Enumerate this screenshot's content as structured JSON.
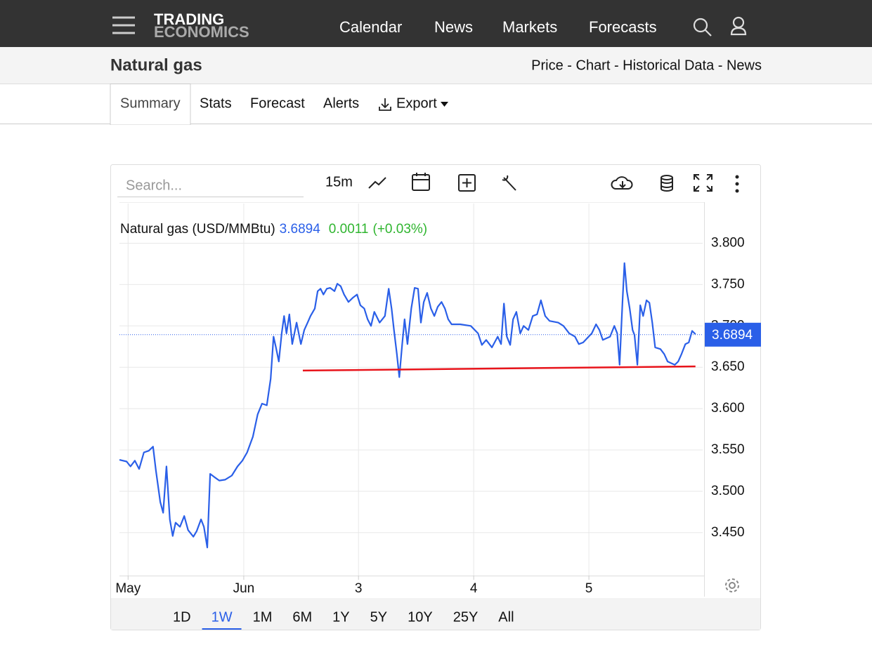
{
  "header": {
    "logo_top": "TRADING",
    "logo_bottom": "ECONOMICS",
    "nav": [
      "Calendar",
      "News",
      "Markets",
      "Forecasts"
    ]
  },
  "page": {
    "title": "Natural gas",
    "links": "Price - Chart - Historical Data - News"
  },
  "tabs": [
    "Summary",
    "Stats",
    "Forecast",
    "Alerts",
    "Export"
  ],
  "toolbar": {
    "search_placeholder": "Search...",
    "interval": "15m"
  },
  "ranges": [
    "1D",
    "1W",
    "1M",
    "6M",
    "1Y",
    "5Y",
    "10Y",
    "25Y",
    "All"
  ],
  "selected_range_index": 1,
  "chart_data": {
    "type": "line",
    "title": "Natural gas (USD/MMBtu)",
    "last_price": 3.6894,
    "change": 0.0011,
    "change_percent": {
      "value": 0.03,
      "label": "(+0.03%)"
    },
    "xlim": [
      0,
      121.5
    ],
    "ylim": [
      3.398,
      3.848
    ],
    "xticks": [
      {
        "value": 1.8,
        "label": "May"
      },
      {
        "value": 25.9,
        "label": "Jun"
      },
      {
        "value": 49.8,
        "label": "3"
      },
      {
        "value": 73.8,
        "label": "4"
      },
      {
        "value": 97.8,
        "label": "5"
      }
    ],
    "yticks": [
      {
        "value": 3.45,
        "label": "3.450"
      },
      {
        "value": 3.5,
        "label": "3.500"
      },
      {
        "value": 3.55,
        "label": "3.550"
      },
      {
        "value": 3.6,
        "label": "3.600"
      },
      {
        "value": 3.65,
        "label": "3.650"
      },
      {
        "value": 3.7,
        "label": "3.700"
      },
      {
        "value": 3.75,
        "label": "3.750"
      },
      {
        "value": 3.8,
        "label": "3.800"
      }
    ],
    "grid": true,
    "x": [
      0.0,
      1.5,
      2.3,
      3.2,
      4.1,
      5.1,
      6.1,
      7.0,
      7.6,
      8.5,
      9.1,
      9.8,
      10.5,
      11.1,
      11.7,
      12.6,
      13.5,
      14.3,
      15.4,
      16.1,
      17.0,
      17.6,
      18.3,
      18.9,
      19.8,
      20.8,
      22.0,
      23.4,
      24.6,
      25.6,
      26.6,
      27.8,
      28.8,
      29.7,
      30.7,
      31.5,
      32.1,
      32.6,
      33.2,
      33.8,
      34.3,
      34.8,
      35.4,
      36.0,
      36.9,
      37.8,
      38.5,
      39.2,
      39.8,
      40.7,
      41.3,
      41.9,
      42.5,
      43.2,
      43.9,
      44.8,
      45.4,
      46.1,
      46.8,
      47.7,
      48.6,
      49.5,
      50.2,
      51.0,
      51.7,
      52.4,
      53.1,
      54.2,
      55.3,
      56.1,
      56.7,
      57.2,
      57.8,
      58.3,
      58.9,
      59.4,
      60.0,
      60.8,
      61.5,
      62.2,
      62.8,
      63.4,
      64.1,
      64.9,
      65.6,
      66.3,
      67.1,
      67.8,
      68.5,
      69.2,
      71.0,
      73.2,
      74.7,
      75.5,
      76.4,
      77.6,
      78.8,
      79.5,
      80.1,
      80.7,
      81.4,
      82.0,
      82.7,
      83.5,
      84.2,
      85.2,
      86.1,
      87.0,
      87.8,
      88.7,
      89.6,
      91.4,
      92.5,
      93.7,
      94.9,
      95.7,
      96.6,
      98.4,
      99.3,
      100.0,
      100.7,
      102.2,
      103.1,
      103.7,
      104.2,
      104.8,
      105.2,
      105.7,
      106.3,
      106.9,
      107.3,
      107.9,
      108.5,
      109.1,
      109.8,
      110.4,
      111.0,
      111.6,
      112.7,
      113.5,
      114.2,
      114.9,
      115.7,
      116.4,
      117.1,
      117.9,
      118.6,
      119.3,
      120.0
    ],
    "series": [
      {
        "name": "Natural gas",
        "color": "#2a5fe8",
        "values": [
          3.538,
          3.536,
          3.53,
          3.537,
          3.527,
          3.547,
          3.549,
          3.554,
          3.525,
          3.487,
          3.474,
          3.53,
          3.466,
          3.446,
          3.462,
          3.457,
          3.47,
          3.453,
          3.445,
          3.452,
          3.466,
          3.457,
          3.432,
          3.521,
          3.517,
          3.513,
          3.514,
          3.519,
          3.53,
          3.537,
          3.547,
          3.566,
          3.593,
          3.606,
          3.604,
          3.636,
          3.687,
          3.674,
          3.657,
          3.691,
          3.712,
          3.691,
          3.714,
          3.678,
          3.704,
          3.678,
          3.695,
          3.704,
          3.712,
          3.721,
          3.742,
          3.745,
          3.738,
          3.745,
          3.746,
          3.742,
          3.751,
          3.748,
          3.738,
          3.729,
          3.734,
          3.738,
          3.725,
          3.721,
          3.708,
          3.7,
          3.717,
          3.704,
          3.712,
          3.745,
          3.721,
          3.695,
          3.666,
          3.638,
          3.678,
          3.708,
          3.678,
          3.721,
          3.746,
          3.745,
          3.704,
          3.729,
          3.74,
          3.721,
          3.712,
          3.723,
          3.729,
          3.721,
          3.708,
          3.702,
          3.702,
          3.7,
          3.691,
          3.677,
          3.683,
          3.674,
          3.687,
          3.678,
          3.727,
          3.687,
          3.677,
          3.708,
          3.717,
          3.691,
          3.7,
          3.695,
          3.712,
          3.714,
          3.731,
          3.712,
          3.706,
          3.704,
          3.7,
          3.691,
          3.687,
          3.678,
          3.68,
          3.691,
          3.702,
          3.695,
          3.683,
          3.687,
          3.7,
          3.691,
          3.653,
          3.729,
          3.776,
          3.742,
          3.721,
          3.695,
          3.689,
          3.653,
          3.725,
          3.712,
          3.731,
          3.728,
          3.704,
          3.674,
          3.672,
          3.666,
          3.657,
          3.655,
          3.653,
          3.657,
          3.666,
          3.678,
          3.68,
          3.694,
          3.69
        ]
      }
    ],
    "support_line": {
      "x": [
        38.2,
        120.0
      ],
      "values": [
        3.646,
        3.651
      ],
      "color": "#e8141b"
    }
  }
}
